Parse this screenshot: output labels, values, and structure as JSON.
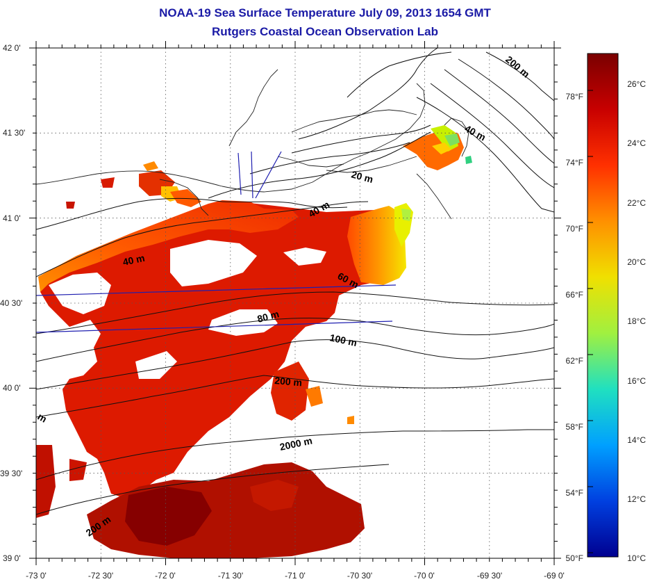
{
  "header": {
    "title_line1": "NOAA-19 Sea Surface Temperature July 09, 2013 1654 GMT",
    "title_line2": "Rutgers Coastal Ocean Observation Lab"
  },
  "axes": {
    "lat_labels": [
      "42 0'",
      "41 30'",
      "41 0'",
      "40 30'",
      "40 0'",
      "39 30'",
      "39 0'"
    ],
    "lon_labels": [
      "-73 0'",
      "-72 30'",
      "-72 0'",
      "-71 30'",
      "-71 0'",
      "-70 30'",
      "-70 0'",
      "-69 30'",
      "-69 0'"
    ]
  },
  "contour_labels": [
    "200 m",
    "40 m",
    "20 m",
    "40 m",
    "40 m",
    "60 m",
    "80 m",
    "100 m",
    "200 m",
    "2000 m",
    "m",
    "200 m"
  ],
  "colorbar": {
    "celsius_labels": [
      "26°C",
      "24°C",
      "22°C",
      "20°C",
      "18°C",
      "16°C",
      "14°C",
      "12°C",
      "10°C"
    ],
    "fahrenheit_labels": [
      "78°F",
      "74°F",
      "70°F",
      "66°F",
      "62°F",
      "58°F",
      "54°F",
      "50°F"
    ],
    "range_celsius": [
      10,
      27.2
    ],
    "colors": [
      "#7a0000",
      "#c80000",
      "#ff3000",
      "#ff9000",
      "#f0e000",
      "#a0f040",
      "#20e0c0",
      "#00a0ff",
      "#0040e0",
      "#000090"
    ]
  },
  "chart_data": {
    "type": "heatmap",
    "title": "NOAA-19 Sea Surface Temperature July 09, 2013 1654 GMT",
    "subtitle": "Rutgers Coastal Ocean Observation Lab",
    "x_range_deg": [
      -73,
      -69
    ],
    "y_range_deg": [
      39,
      42
    ],
    "value_range_celsius": [
      10,
      27.2
    ],
    "legend": "right"
  },
  "palette": {
    "title_color": "#1a1aa6",
    "sst_dark": "#a00000",
    "sst_red": "#dd1a00",
    "sst_orange": "#ff5a00",
    "sst_yellow": "#f5e000",
    "track_blue": "#1f1fb0"
  }
}
